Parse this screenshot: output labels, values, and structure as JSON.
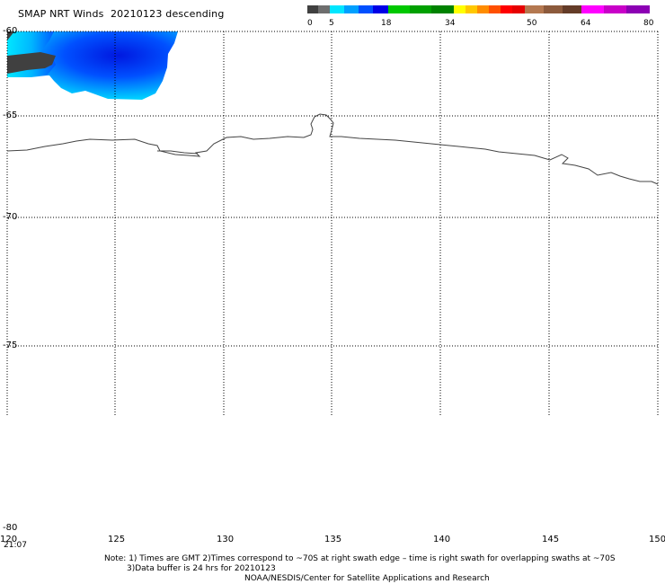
{
  "header": {
    "title": "SMAP NRT Winds  20210123 descending"
  },
  "colorbar": {
    "segments": [
      {
        "color": "#404040"
      },
      {
        "color": "#6e6e6e"
      },
      {
        "color": "#00e6ff"
      },
      {
        "color": "#00a0ff"
      },
      {
        "color": "#0050ff"
      },
      {
        "color": "#0000e6"
      },
      {
        "color": "#00c800"
      },
      {
        "color": "#00a000"
      },
      {
        "color": "#008200"
      },
      {
        "color": "#ffff00"
      },
      {
        "color": "#ffc800"
      },
      {
        "color": "#ff8c00"
      },
      {
        "color": "#ff5000"
      },
      {
        "color": "#ff0000"
      },
      {
        "color": "#e60000"
      },
      {
        "color": "#b47850"
      },
      {
        "color": "#8c5a3c"
      },
      {
        "color": "#643c28"
      },
      {
        "color": "#ff00ff"
      },
      {
        "color": "#c800c8"
      },
      {
        "color": "#8c00b4"
      }
    ],
    "labels": [
      "0",
      "5",
      "18",
      "34",
      "50",
      "64",
      "80"
    ]
  },
  "map": {
    "lat_labels": [
      "-60",
      "-65",
      "-70",
      "-75",
      "-80"
    ],
    "lon_labels": [
      "120",
      "125",
      "130",
      "135",
      "140",
      "145",
      "150"
    ],
    "time_label": "21:07",
    "colors": {
      "gridline": "#000000",
      "coastline": "#444444",
      "land_patch": "#404040",
      "wind_cyan": "#00e6ff",
      "wind_blue": "#0050ff",
      "wind_deep": "#0020e6"
    }
  },
  "footer": {
    "note_line1": "Note: 1) Times are GMT 2)Times correspond to ~70S at right swath edge – time is right swath for overlapping swaths at ~70S",
    "note_line2": "3)Data buffer is 24 hrs for 20210123",
    "note_line3": "NOAA/NESDIS/Center for Satellite Applications and Research"
  }
}
